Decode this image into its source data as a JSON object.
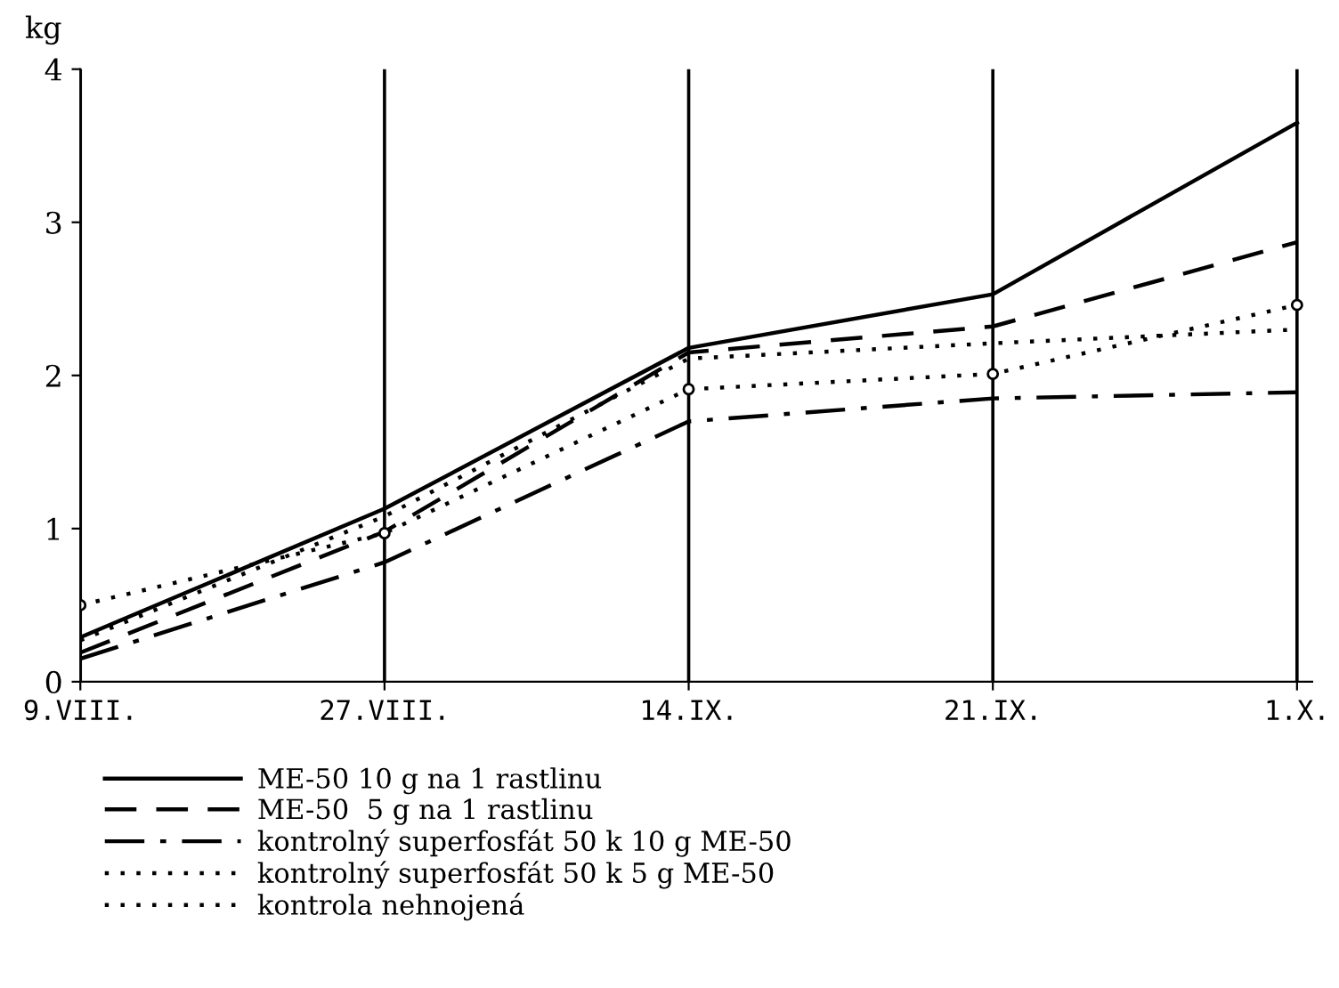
{
  "chart_data": {
    "type": "line",
    "ylabel": "kg",
    "categories": [
      "9.VIII.",
      "27.VIII.",
      "14.IX.",
      "21.IX.",
      "1.X."
    ],
    "series": [
      {
        "name": "ME-50 10 g na 1 rastlinu",
        "color": "#000000",
        "line_style": "solid",
        "marker": "none",
        "values": [
          0.29,
          1.13,
          2.18,
          2.53,
          3.65
        ]
      },
      {
        "name": "ME-50  5 g na 1 rastlinu",
        "color": "#000000",
        "line_style": "dashed",
        "marker": "none",
        "values": [
          0.19,
          0.98,
          2.15,
          2.32,
          2.87
        ]
      },
      {
        "name": "kontrolný superfosfát 50 k 10 g ME-50",
        "color": "#000000",
        "line_style": "dashdot",
        "marker": "none",
        "values": [
          0.15,
          0.78,
          1.7,
          1.85,
          1.89
        ]
      },
      {
        "name": "kontrolný superfosfát 50 k 5 g ME-50",
        "color": "#000000",
        "line_style": "dotted",
        "marker": "none",
        "values": [
          0.27,
          1.08,
          2.11,
          2.21,
          2.3
        ]
      },
      {
        "name": "kontrola nehnojená",
        "color": "#000000",
        "line_style": "dotted",
        "marker": "circle",
        "values": [
          0.5,
          0.97,
          1.91,
          2.01,
          2.46
        ]
      }
    ],
    "ylim": [
      0,
      4
    ],
    "yticks": [
      0,
      1,
      2,
      3,
      4
    ],
    "grid": "x",
    "legend": "bottom"
  }
}
